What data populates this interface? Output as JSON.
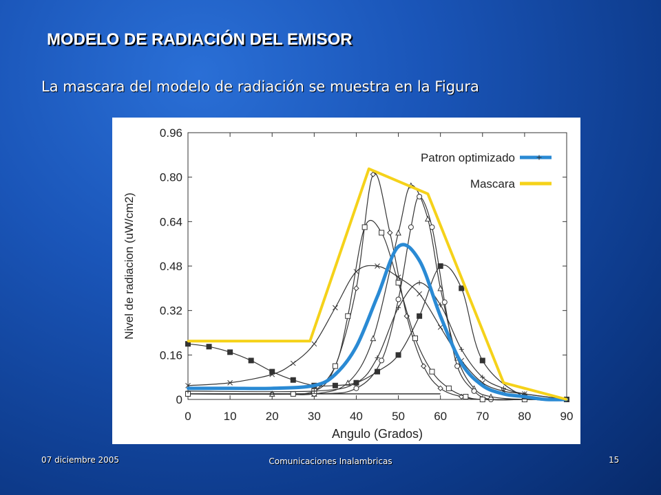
{
  "slide": {
    "title": "MODELO DE RADIACIÓN DEL EMISOR",
    "subtitle": "La mascara del modelo de radiación se muestra en la Figura",
    "footer_date": "07 diciembre 2005",
    "footer_center": "Comunicaciones Inalambricas",
    "page_number": "15"
  },
  "colors": {
    "background": "#1a55b8",
    "mask": "#f5d21a",
    "optimized": "#2a8ad4",
    "curves": "#333333"
  },
  "chart_data": {
    "type": "line",
    "xlabel": "Angulo (Grados)",
    "ylabel": "Nivel de radiacion (uW/cm2)",
    "xlim": [
      0,
      90
    ],
    "ylim": [
      0,
      0.96
    ],
    "xticks": [
      "0",
      "10",
      "20",
      "30",
      "40",
      "50",
      "60",
      "70",
      "80",
      "90"
    ],
    "yticks": [
      "0",
      "0.16",
      "0.32",
      "0.48",
      "0.64",
      "0.80",
      "0.96"
    ],
    "legend_position": "top-right",
    "series": [
      {
        "name": "Patron optimizado",
        "x": [
          0,
          10,
          20,
          30,
          35,
          40,
          45,
          50,
          55,
          60,
          65,
          70,
          75,
          80,
          85,
          90
        ],
        "y": [
          0.04,
          0.04,
          0.04,
          0.05,
          0.09,
          0.19,
          0.37,
          0.55,
          0.5,
          0.3,
          0.13,
          0.05,
          0.02,
          0.01,
          0.0,
          0.0
        ]
      },
      {
        "name": "Mascara",
        "x": [
          0,
          29,
          43,
          57,
          75,
          90
        ],
        "y": [
          0.21,
          0.21,
          0.83,
          0.74,
          0.06,
          0.0
        ]
      }
    ],
    "other_curves": [
      {
        "marker": "diamond",
        "x": [
          0,
          20,
          30,
          35,
          40,
          44,
          48,
          52,
          56,
          60,
          65,
          70,
          80,
          90
        ],
        "y": [
          0.02,
          0.02,
          0.03,
          0.12,
          0.4,
          0.81,
          0.6,
          0.3,
          0.12,
          0.04,
          0.01,
          0.0,
          0.0,
          0.0
        ]
      },
      {
        "marker": "triangle",
        "x": [
          0,
          20,
          30,
          38,
          44,
          50,
          53,
          57,
          60,
          64,
          68,
          72,
          80,
          90
        ],
        "y": [
          0.02,
          0.02,
          0.02,
          0.06,
          0.22,
          0.6,
          0.77,
          0.65,
          0.4,
          0.15,
          0.04,
          0.01,
          0.0,
          0.0
        ]
      },
      {
        "marker": "circle",
        "x": [
          0,
          30,
          40,
          46,
          50,
          53,
          55,
          58,
          61,
          64,
          68,
          72,
          80,
          90
        ],
        "y": [
          0.02,
          0.02,
          0.04,
          0.14,
          0.36,
          0.62,
          0.73,
          0.62,
          0.35,
          0.12,
          0.03,
          0.0,
          0.0,
          0.0
        ]
      },
      {
        "marker": "square",
        "x": [
          0,
          25,
          30,
          35,
          38,
          42,
          46,
          50,
          54,
          58,
          62,
          66,
          70,
          80,
          90
        ],
        "y": [
          0.02,
          0.02,
          0.03,
          0.12,
          0.3,
          0.62,
          0.6,
          0.42,
          0.22,
          0.1,
          0.04,
          0.01,
          0.0,
          0.0,
          0.0
        ]
      },
      {
        "marker": "x",
        "x": [
          0,
          10,
          20,
          25,
          30,
          35,
          40,
          45,
          50,
          55,
          60,
          65,
          70,
          75,
          80,
          90
        ],
        "y": [
          0.05,
          0.06,
          0.09,
          0.13,
          0.2,
          0.33,
          0.46,
          0.48,
          0.44,
          0.38,
          0.26,
          0.14,
          0.06,
          0.03,
          0.02,
          0.0
        ]
      },
      {
        "marker": "filled-square",
        "x": [
          0,
          5,
          10,
          15,
          20,
          25,
          30,
          35,
          40,
          45,
          50,
          55,
          60,
          65,
          70,
          80,
          90
        ],
        "y": [
          0.2,
          0.19,
          0.17,
          0.14,
          0.1,
          0.07,
          0.05,
          0.05,
          0.06,
          0.1,
          0.16,
          0.3,
          0.48,
          0.4,
          0.14,
          0.01,
          0.0
        ]
      },
      {
        "marker": "plus",
        "x": [
          0,
          30,
          40,
          45,
          50,
          55,
          60,
          65,
          70,
          75,
          80,
          90
        ],
        "y": [
          0.03,
          0.03,
          0.06,
          0.15,
          0.33,
          0.42,
          0.34,
          0.18,
          0.08,
          0.04,
          0.02,
          0.0
        ]
      }
    ]
  }
}
